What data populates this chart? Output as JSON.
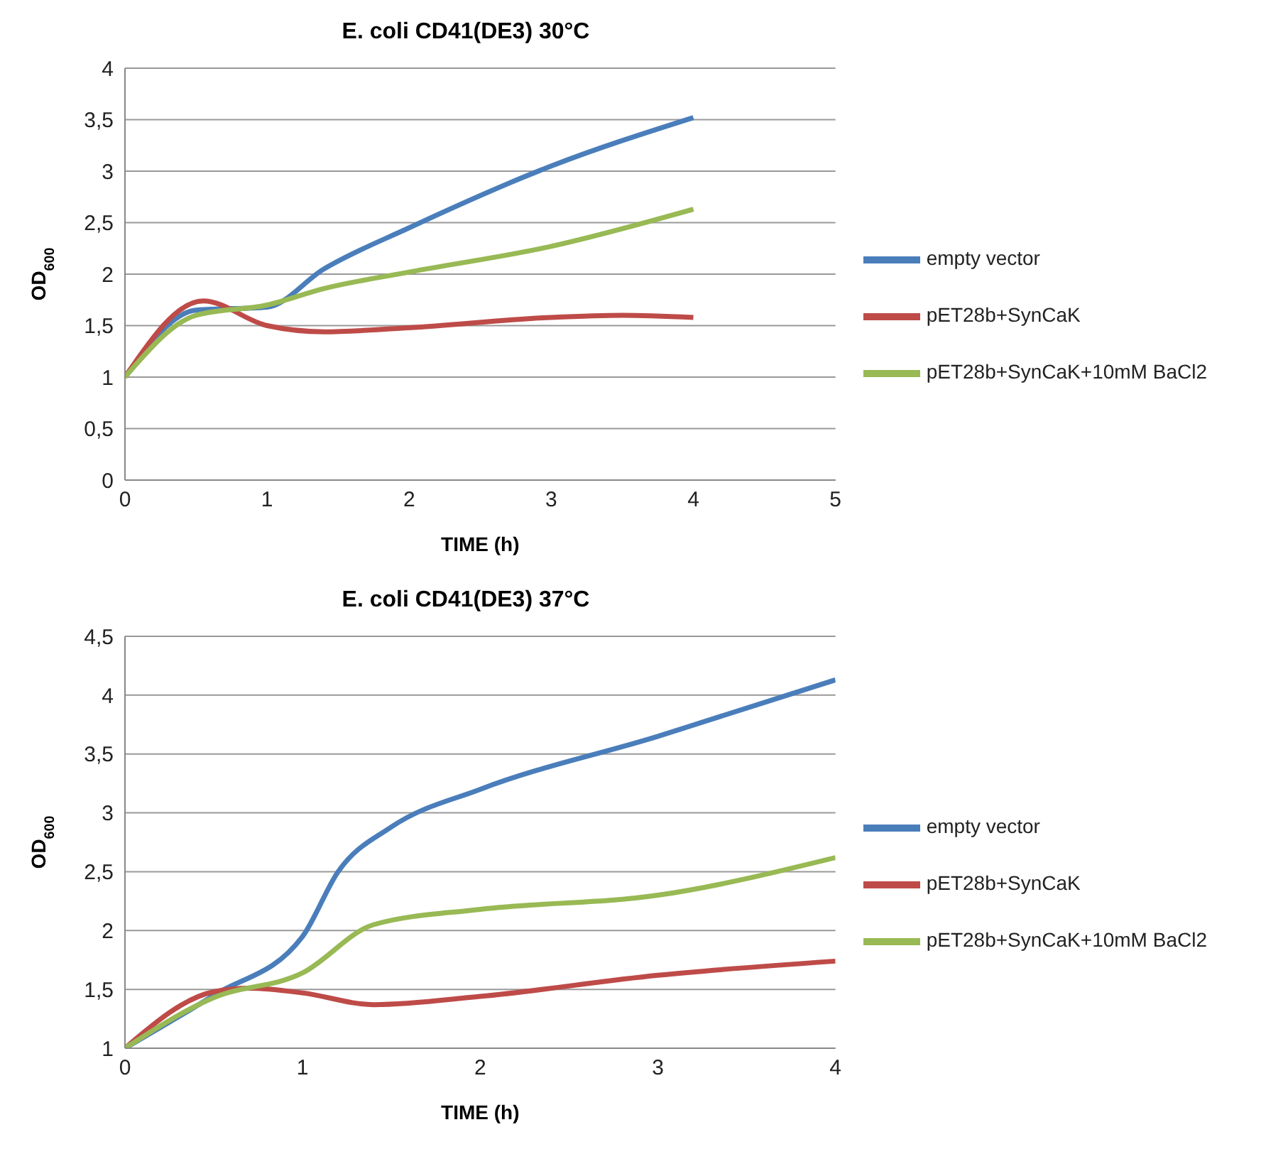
{
  "chart_data": [
    {
      "type": "line",
      "title": "E. coli CD41(DE3) 30°C",
      "xlabel": "TIME (h)",
      "ylabel": "OD$_{600}$",
      "xlim": [
        0,
        5
      ],
      "xticks": [
        0,
        1,
        2,
        3,
        4,
        5
      ],
      "ylim": [
        0,
        4
      ],
      "yticks": [
        0,
        {
          "value": 0.5,
          "label": "0,5"
        },
        1,
        {
          "value": 1.5,
          "label": "1,5"
        },
        2,
        {
          "value": 2.5,
          "label": "2,5"
        },
        3,
        {
          "value": 3.5,
          "label": "3,5"
        },
        4
      ],
      "grid": "y",
      "legend": "right",
      "marker": "none",
      "line_style": "solid",
      "series": [
        {
          "name": "empty vector",
          "color": "#4a7ebb",
          "x": [
            0,
            0.5,
            1,
            1.4,
            2,
            3,
            4
          ],
          "values": [
            1,
            1.65,
            1.68,
            2.05,
            2.45,
            3.05,
            3.52
          ]
        },
        {
          "name": "pET28b+SynCaK",
          "color": "#be4b48",
          "x": [
            0,
            0.55,
            1,
            1.4,
            2,
            3,
            3.5,
            4
          ],
          "values": [
            1,
            1.74,
            1.5,
            1.44,
            1.48,
            1.58,
            1.6,
            1.58
          ]
        },
        {
          "name": "pET28b+SynCaK+10mM BaCl2",
          "color": "#98b954",
          "x": [
            0,
            0.5,
            1,
            1.4,
            2,
            3,
            4
          ],
          "values": [
            1,
            1.6,
            1.7,
            1.86,
            2.02,
            2.27,
            2.63
          ]
        }
      ]
    },
    {
      "type": "line",
      "title": "E. coli CD41(DE3) 37°C",
      "xlabel": "TIME (h)",
      "ylabel": "OD$_{600}$",
      "xlim": [
        0,
        4
      ],
      "xticks": [
        0,
        1,
        2,
        3,
        4
      ],
      "ylim": [
        1,
        4.5
      ],
      "yticks": [
        1,
        {
          "value": 1.5,
          "label": "1,5"
        },
        2,
        {
          "value": 2.5,
          "label": "2,5"
        },
        3,
        {
          "value": 3.5,
          "label": "3,5"
        },
        4,
        {
          "value": 4.5,
          "label": "4,5"
        }
      ],
      "grid": "y",
      "legend": "right",
      "marker": "none",
      "line_style": "solid",
      "series": [
        {
          "name": "empty vector",
          "color": "#4a7ebb",
          "x": [
            0,
            0.5,
            1,
            1.2,
            1.5,
            2,
            3,
            4
          ],
          "values": [
            1,
            1.45,
            1.95,
            2.5,
            2.88,
            3.2,
            3.65,
            4.13
          ]
        },
        {
          "name": "pET28b+SynCaK",
          "color": "#be4b48",
          "x": [
            0,
            0.5,
            0.7,
            1,
            1.4,
            2,
            3,
            4
          ],
          "values": [
            1,
            1.48,
            1.51,
            1.47,
            1.37,
            1.44,
            1.62,
            1.74
          ]
        },
        {
          "name": "pET28b+SynCaK+10mM BaCl2",
          "color": "#98b954",
          "x": [
            0,
            0.5,
            1,
            1.4,
            2,
            3,
            4
          ],
          "values": [
            1,
            1.43,
            1.64,
            2.05,
            2.18,
            2.3,
            2.62
          ]
        }
      ]
    }
  ]
}
